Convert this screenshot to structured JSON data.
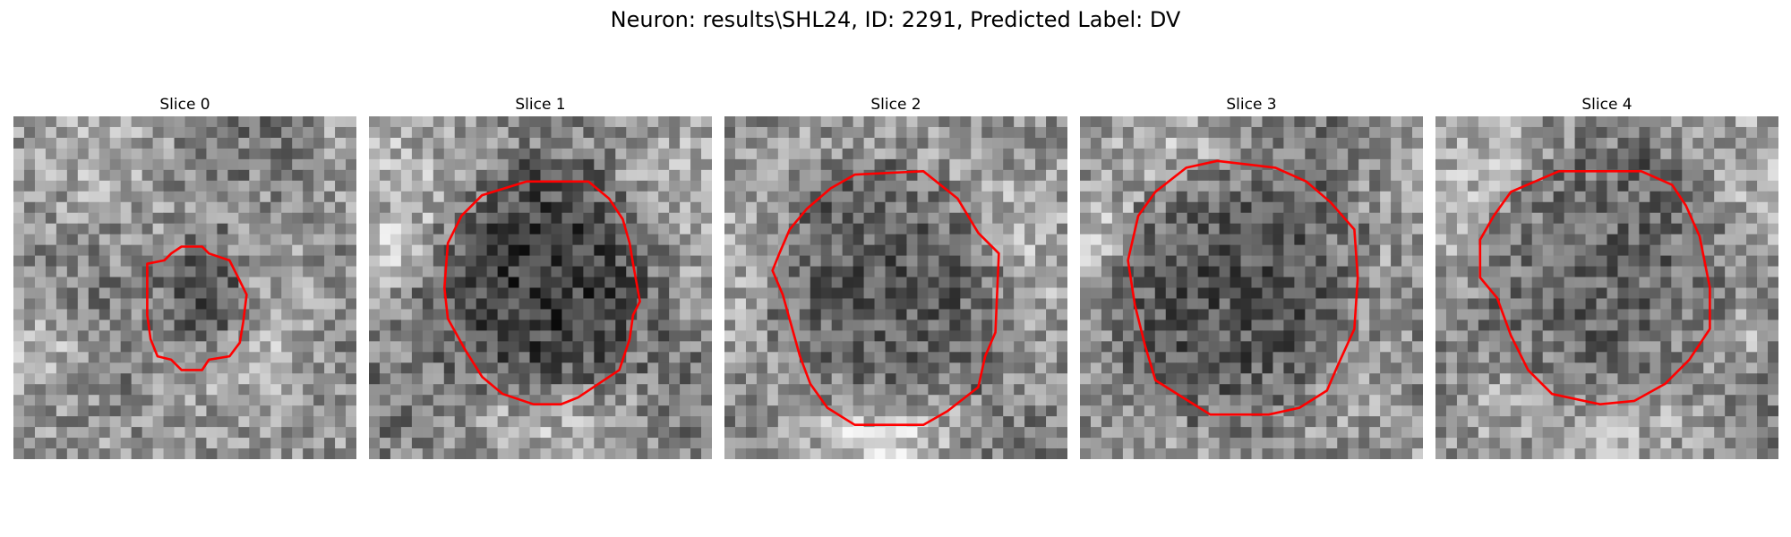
{
  "figure": {
    "title": "Neuron: results\\SHL24, ID: 2291, Predicted Label: DV"
  },
  "panels": [
    {
      "title": "Slice 0"
    },
    {
      "title": "Slice 1"
    },
    {
      "title": "Slice 2"
    },
    {
      "title": "Slice 3"
    },
    {
      "title": "Slice 4"
    }
  ],
  "colors": {
    "contour": "#ff0000",
    "colormap": "gray"
  }
}
